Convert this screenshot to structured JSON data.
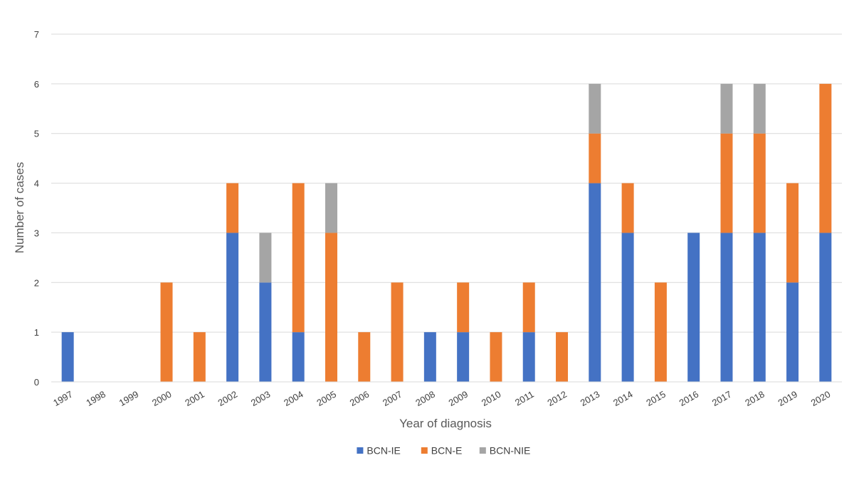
{
  "chart_data": {
    "type": "bar",
    "stacked": true,
    "categories": [
      "1997",
      "1998",
      "1999",
      "2000",
      "2001",
      "2002",
      "2003",
      "2004",
      "2005",
      "2006",
      "2007",
      "2008",
      "2009",
      "2010",
      "2011",
      "2012",
      "2013",
      "2014",
      "2015",
      "2016",
      "2017",
      "2018",
      "2019",
      "2020"
    ],
    "series": [
      {
        "name": "BCN-IE",
        "color": "#4472C4",
        "values": [
          1,
          0,
          0,
          0,
          0,
          3,
          2,
          1,
          0,
          0,
          0,
          1,
          1,
          0,
          1,
          0,
          4,
          3,
          0,
          3,
          3,
          3,
          2,
          3
        ]
      },
      {
        "name": "BCN-E",
        "color": "#ED7D31",
        "values": [
          0,
          0,
          0,
          2,
          1,
          1,
          0,
          3,
          3,
          1,
          2,
          0,
          1,
          1,
          1,
          1,
          1,
          1,
          2,
          0,
          2,
          2,
          2,
          3
        ]
      },
      {
        "name": "BCN-NIE",
        "color": "#A5A5A5",
        "values": [
          0,
          0,
          0,
          0,
          0,
          0,
          1,
          0,
          1,
          0,
          0,
          0,
          0,
          0,
          0,
          0,
          1,
          0,
          0,
          0,
          1,
          1,
          0,
          0
        ]
      }
    ],
    "xlabel": "Year of diagnosis",
    "ylabel": "Number  of cases",
    "ylim": [
      0,
      7
    ],
    "yticks": [
      "0",
      "1",
      "2",
      "3",
      "4",
      "5",
      "6",
      "7"
    ],
    "grid": true,
    "legend_position": "bottom"
  }
}
